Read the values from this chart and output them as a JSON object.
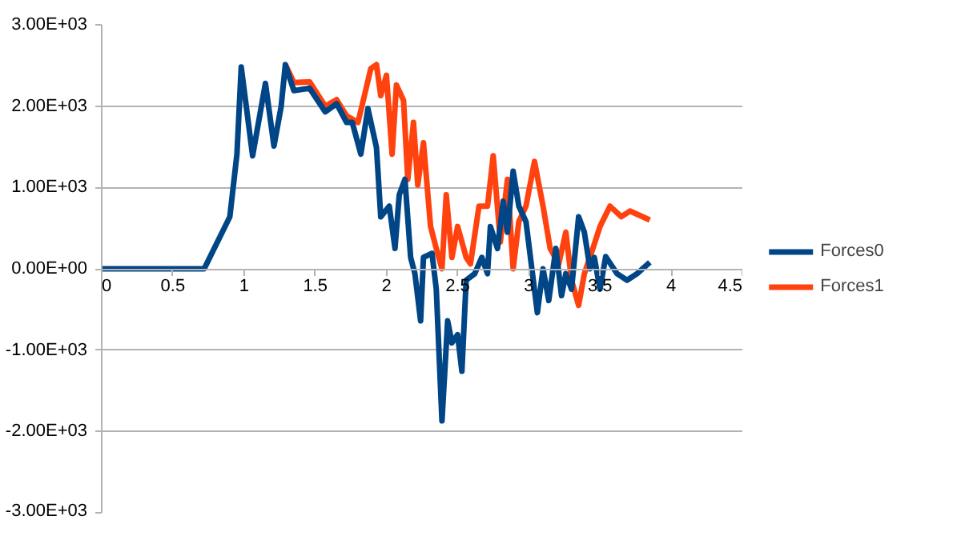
{
  "chart_data": {
    "type": "line",
    "xlim": [
      0,
      4.5
    ],
    "ylim": [
      -3000,
      3000
    ],
    "xticks": [
      0,
      0.5,
      1,
      1.5,
      2,
      2.5,
      3,
      3.5,
      4,
      4.5
    ],
    "yticks": [
      {
        "value": -3000,
        "label": "-3.00E+03"
      },
      {
        "value": -2000,
        "label": "-2.00E+03"
      },
      {
        "value": -1000,
        "label": "-1.00E+03"
      },
      {
        "value": 0,
        "label": "0.00E+00"
      },
      {
        "value": 1000,
        "label": "1.00E+03"
      },
      {
        "value": 2000,
        "label": "2.00E+03"
      },
      {
        "value": 3000,
        "label": "3.00E+03"
      }
    ],
    "grid": "y",
    "legend": "right",
    "marker": "none",
    "line_style": "solid",
    "series": [
      {
        "name": "Forces0",
        "color": "#004586",
        "x": [
          0,
          0.72,
          0.9,
          0.95,
          0.98,
          1.06,
          1.15,
          1.21,
          1.26,
          1.29,
          1.35,
          1.46,
          1.57,
          1.65,
          1.72,
          1.76,
          1.82,
          1.87,
          1.93,
          1.96,
          2.02,
          2.06,
          2.09,
          2.13,
          2.17,
          2.2,
          2.24,
          2.26,
          2.32,
          2.35,
          2.39,
          2.43,
          2.46,
          2.5,
          2.53,
          2.56,
          2.62,
          2.67,
          2.71,
          2.73,
          2.78,
          2.82,
          2.85,
          2.89,
          2.93,
          2.98,
          3.06,
          3.1,
          3.14,
          3.19,
          3.23,
          3.26,
          3.3,
          3.35,
          3.39,
          3.43,
          3.46,
          3.5,
          3.54,
          3.62,
          3.69,
          3.76,
          3.85
        ],
        "values": [
          0,
          0,
          640,
          1410,
          2480,
          1390,
          2280,
          1510,
          1990,
          2510,
          2190,
          2220,
          1930,
          2030,
          1800,
          1800,
          1410,
          1970,
          1490,
          640,
          770,
          250,
          910,
          1100,
          140,
          -60,
          -640,
          140,
          190,
          -250,
          -1870,
          -640,
          -910,
          -810,
          -1260,
          -140,
          -60,
          140,
          -60,
          520,
          250,
          830,
          450,
          1200,
          770,
          580,
          -540,
          0,
          -390,
          250,
          -330,
          -60,
          -250,
          640,
          450,
          0,
          140,
          -250,
          150,
          -60,
          -140,
          -60,
          80
        ]
      },
      {
        "name": "Forces1",
        "color": "#ff420e",
        "x": [
          1.29,
          1.35,
          1.46,
          1.57,
          1.65,
          1.72,
          1.8,
          1.84,
          1.89,
          1.93,
          1.96,
          2.0,
          2.04,
          2.07,
          2.12,
          2.15,
          2.19,
          2.22,
          2.26,
          2.31,
          2.35,
          2.39,
          2.42,
          2.46,
          2.5,
          2.56,
          2.59,
          2.65,
          2.71,
          2.75,
          2.8,
          2.85,
          2.89,
          2.93,
          2.98,
          3.04,
          3.1,
          3.15,
          3.21,
          3.26,
          3.3,
          3.35,
          3.39,
          3.45,
          3.5,
          3.57,
          3.65,
          3.71,
          3.85
        ],
        "values": [
          2510,
          2290,
          2300,
          2000,
          2080,
          1880,
          1800,
          2090,
          2460,
          2510,
          2130,
          2380,
          1410,
          2260,
          2070,
          1100,
          1800,
          1030,
          1550,
          520,
          250,
          0,
          910,
          140,
          520,
          140,
          60,
          770,
          770,
          1390,
          330,
          1100,
          0,
          580,
          770,
          1320,
          770,
          250,
          60,
          450,
          -140,
          -450,
          -60,
          250,
          520,
          770,
          640,
          710,
          600
        ]
      }
    ]
  }
}
